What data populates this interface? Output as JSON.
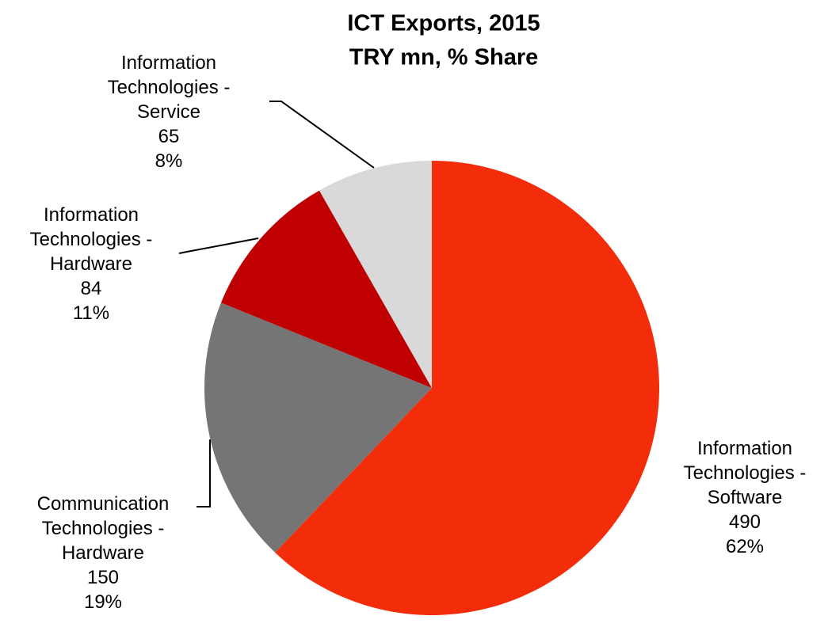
{
  "chart_data": {
    "type": "pie",
    "title": "ICT Exports, 2015",
    "subtitle": "TRY mn, % Share",
    "categories": [
      "Information Technologies - Software",
      "Communication Technologies - Hardware",
      "Information Technologies - Hardware",
      "Information Technologies - Service"
    ],
    "values": [
      490,
      150,
      84,
      65
    ],
    "shares": [
      62,
      19,
      11,
      8
    ],
    "share_labels": [
      "62%",
      "19%",
      "11%",
      "8%"
    ],
    "colors": [
      "#f32c0a",
      "#757575",
      "#c00000",
      "#d9d9d9"
    ]
  }
}
